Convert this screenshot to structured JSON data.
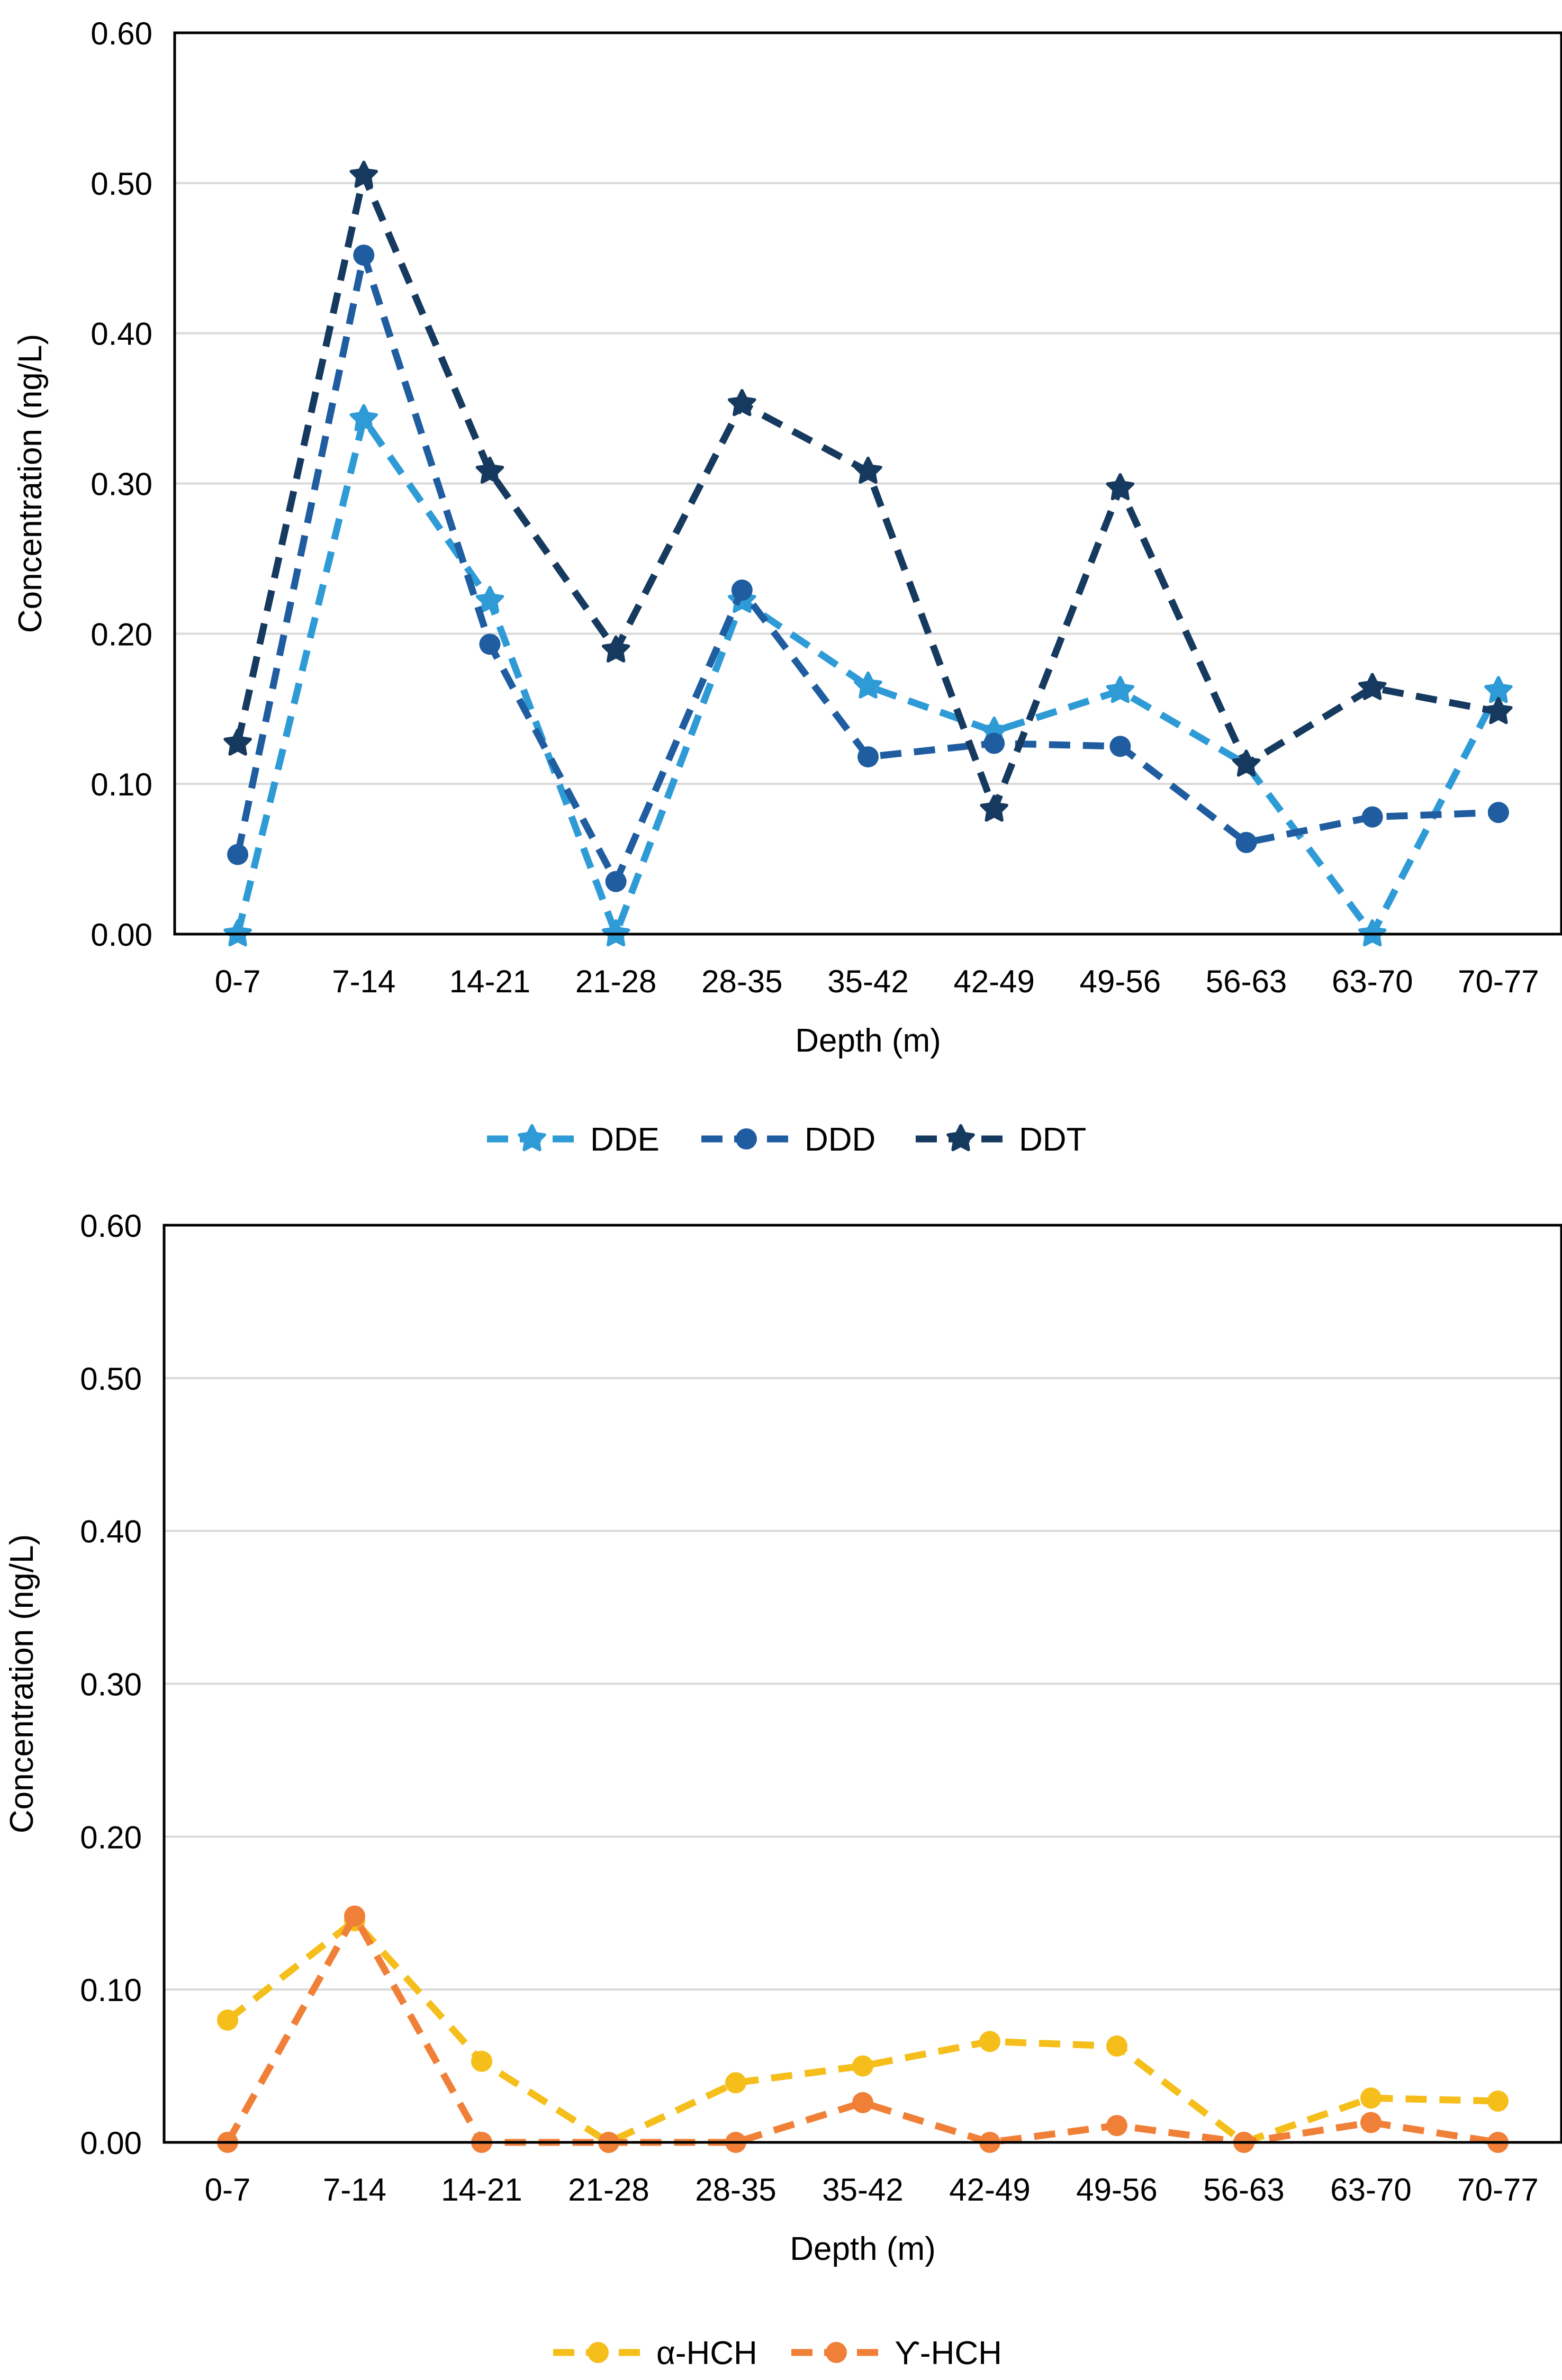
{
  "chart_data": [
    {
      "type": "line",
      "title": "",
      "xlabel": "Depth (m)",
      "ylabel": "Concentration  (ng/L)",
      "categories": [
        "0-7",
        "7-14",
        "14-21",
        "21-28",
        "28-35",
        "35-42",
        "42-49",
        "49-56",
        "56-63",
        "63-70",
        "70-77"
      ],
      "ylim": [
        0,
        0.6
      ],
      "yticks": [
        "0.00",
        "0.10",
        "0.20",
        "0.30",
        "0.40",
        "0.50",
        "0.60"
      ],
      "yticks_values": [
        0,
        0.1,
        0.2,
        0.3,
        0.4,
        0.5,
        0.6
      ],
      "grid": true,
      "legend_position": "bottom-center",
      "series": [
        {
          "name": "DDE",
          "color": "#2E9BD6",
          "marker": "star",
          "values": [
            0.0,
            0.343,
            0.222,
            0.0,
            0.222,
            0.165,
            0.135,
            0.162,
            0.113,
            0.0,
            0.162
          ]
        },
        {
          "name": "DDD",
          "color": "#1F5DA0",
          "marker": "circle",
          "values": [
            0.053,
            0.452,
            0.193,
            0.035,
            0.229,
            0.118,
            0.127,
            0.125,
            0.061,
            0.078,
            0.081
          ]
        },
        {
          "name": "DDT",
          "color": "#163A5F",
          "marker": "star",
          "values": [
            0.127,
            0.505,
            0.308,
            0.189,
            0.353,
            0.308,
            0.083,
            0.297,
            0.113,
            0.164,
            0.148
          ]
        }
      ]
    },
    {
      "type": "line",
      "title": "",
      "xlabel": "Depth (m)",
      "ylabel": "Concentration  (ng/L)",
      "categories": [
        "0-7",
        "7-14",
        "14-21",
        "21-28",
        "28-35",
        "35-42",
        "42-49",
        "49-56",
        "56-63",
        "63-70",
        "70-77"
      ],
      "ylim": [
        0,
        0.6
      ],
      "yticks": [
        "0.00",
        "0.10",
        "0.20",
        "0.30",
        "0.40",
        "0.50",
        "0.60"
      ],
      "yticks_values": [
        0,
        0.1,
        0.2,
        0.3,
        0.4,
        0.5,
        0.6
      ],
      "grid": true,
      "legend_position": "bottom-center",
      "series": [
        {
          "name": "α-HCH",
          "color": "#F5BE1A",
          "marker": "circle",
          "values": [
            0.08,
            0.145,
            0.053,
            0.0,
            0.039,
            0.05,
            0.066,
            0.063,
            0.0,
            0.029,
            0.027
          ]
        },
        {
          "name": "ϒ-HCH",
          "color": "#F07F38",
          "marker": "circle",
          "values": [
            0.0,
            0.148,
            0.0,
            0.0,
            0.0,
            0.026,
            0.0,
            0.011,
            0.0,
            0.013,
            0.0
          ]
        }
      ]
    }
  ]
}
